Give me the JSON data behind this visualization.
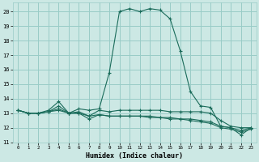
{
  "xlabel": "Humidex (Indice chaleur)",
  "bg_color": "#cce8e4",
  "grid_color": "#99ccc7",
  "line_color": "#1a6b5a",
  "xlim": [
    -0.5,
    23.5
  ],
  "ylim": [
    11,
    20.6
  ],
  "xticks": [
    0,
    1,
    2,
    3,
    4,
    5,
    6,
    7,
    8,
    9,
    10,
    11,
    12,
    13,
    14,
    15,
    16,
    17,
    18,
    19,
    20,
    21,
    22,
    23
  ],
  "yticks": [
    11,
    12,
    13,
    14,
    15,
    16,
    17,
    18,
    19,
    20
  ],
  "line1_x": [
    0,
    1,
    2,
    3,
    4,
    5,
    6,
    7,
    8,
    9,
    10,
    11,
    12,
    13,
    14,
    15,
    16,
    17,
    18,
    19,
    20,
    21,
    22,
    23
  ],
  "line1_y": [
    13.2,
    13.0,
    13.0,
    13.2,
    13.8,
    13.0,
    13.3,
    13.2,
    13.3,
    15.8,
    20.0,
    20.2,
    20.0,
    20.2,
    20.1,
    19.5,
    17.3,
    14.5,
    13.5,
    13.4,
    12.1,
    12.0,
    11.5,
    12.0
  ],
  "line2_x": [
    0,
    1,
    2,
    3,
    4,
    5,
    6,
    7,
    8,
    9,
    10,
    11,
    12,
    13,
    14,
    15,
    16,
    17,
    18,
    19,
    20,
    21,
    22,
    23
  ],
  "line2_y": [
    13.2,
    13.0,
    13.0,
    13.1,
    13.5,
    13.0,
    13.1,
    12.8,
    13.2,
    13.1,
    13.2,
    13.2,
    13.2,
    13.2,
    13.2,
    13.1,
    13.1,
    13.1,
    13.1,
    13.0,
    12.5,
    12.1,
    12.0,
    12.0
  ],
  "line3_x": [
    0,
    1,
    2,
    3,
    4,
    5,
    6,
    7,
    8,
    9,
    10,
    11,
    12,
    13,
    14,
    15,
    16,
    17,
    18,
    19,
    20,
    21,
    22,
    23
  ],
  "line3_y": [
    13.2,
    13.0,
    13.0,
    13.1,
    13.3,
    13.0,
    13.0,
    12.6,
    12.9,
    12.8,
    12.8,
    12.8,
    12.8,
    12.8,
    12.7,
    12.7,
    12.6,
    12.6,
    12.5,
    12.4,
    12.1,
    12.0,
    11.8,
    12.0
  ],
  "line4_x": [
    0,
    1,
    2,
    3,
    4,
    5,
    6,
    7,
    8,
    9,
    10,
    11,
    12,
    13,
    14,
    15,
    16,
    17,
    18,
    19,
    20,
    21,
    22,
    23
  ],
  "line4_y": [
    13.2,
    13.0,
    13.0,
    13.1,
    13.2,
    13.0,
    13.0,
    12.8,
    12.9,
    12.8,
    12.8,
    12.8,
    12.8,
    12.7,
    12.7,
    12.6,
    12.6,
    12.5,
    12.4,
    12.3,
    12.0,
    11.9,
    11.7,
    11.9
  ]
}
